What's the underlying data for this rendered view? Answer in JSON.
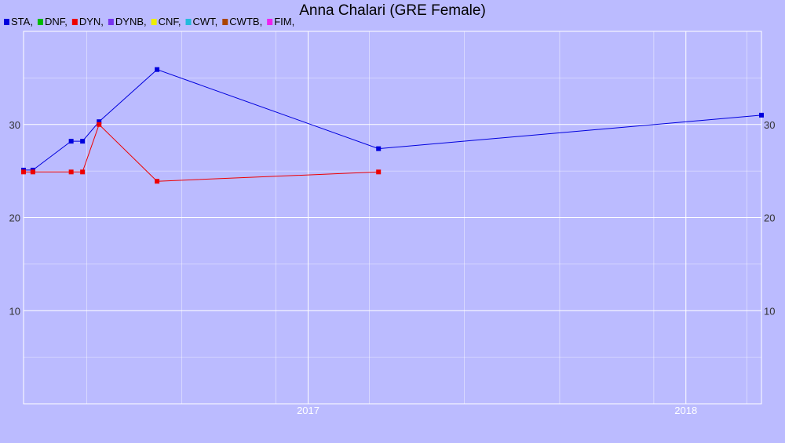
{
  "chart_data": {
    "type": "line",
    "title": "Anna Chalari (GRE Female)",
    "legend": [
      {
        "label": "STA,",
        "color": "#0000dd"
      },
      {
        "label": "DNF,",
        "color": "#00bb00"
      },
      {
        "label": "DYN,",
        "color": "#ee0000"
      },
      {
        "label": "DYNB,",
        "color": "#7733ee"
      },
      {
        "label": "CNF,",
        "color": "#eeee00"
      },
      {
        "label": "CWT,",
        "color": "#22bbdd"
      },
      {
        "label": "CWTB,",
        "color": "#aa4400"
      },
      {
        "label": "FIM,",
        "color": "#ee22ee"
      }
    ],
    "legend_placement": "top-left",
    "x_axis": {
      "type": "date",
      "range": [
        "2016-04-01",
        "2018-03-15"
      ],
      "tick_labels": [
        "2017",
        "2018"
      ],
      "ticks": [
        "2017-01-01",
        "2018-01-01"
      ],
      "minor_gridlines": [
        "2016-06-01",
        "2016-09-01",
        "2016-12-01",
        "2017-03-01",
        "2017-06-01",
        "2017-09-01",
        "2017-12-01",
        "2018-03-01"
      ]
    },
    "y_axis": {
      "range": [
        0,
        40
      ],
      "ticks": [
        10,
        20,
        30
      ],
      "tick_labels": [
        "10",
        "20",
        "30"
      ],
      "gridlines": [
        5,
        10,
        15,
        20,
        25,
        30,
        35
      ]
    },
    "grid": true,
    "series": [
      {
        "name": "STA",
        "color": "#0000dd",
        "points": [
          {
            "x": "2016-04-01",
            "y": 25.1
          },
          {
            "x": "2016-04-10",
            "y": 25.1
          },
          {
            "x": "2016-05-17",
            "y": 28.2
          },
          {
            "x": "2016-05-28",
            "y": 28.2
          },
          {
            "x": "2016-06-13",
            "y": 30.3
          },
          {
            "x": "2016-08-08",
            "y": 35.9
          },
          {
            "x": "2017-03-10",
            "y": 27.4
          },
          {
            "x": "2018-03-15",
            "y": 31.0
          }
        ]
      },
      {
        "name": "DYN",
        "color": "#ee0000",
        "points": [
          {
            "x": "2016-04-01",
            "y": 24.9
          },
          {
            "x": "2016-04-10",
            "y": 24.9
          },
          {
            "x": "2016-05-17",
            "y": 24.9
          },
          {
            "x": "2016-05-28",
            "y": 24.9
          },
          {
            "x": "2016-06-13",
            "y": 30.0
          },
          {
            "x": "2016-08-08",
            "y": 23.9
          },
          {
            "x": "2017-03-10",
            "y": 24.9
          }
        ]
      }
    ]
  }
}
